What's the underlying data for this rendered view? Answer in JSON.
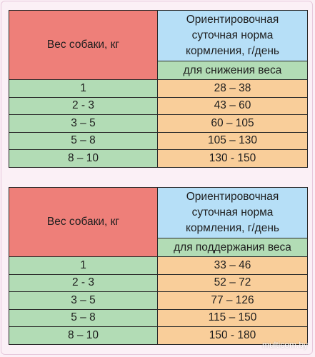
{
  "tables": [
    {
      "weight_header": "Вес собаки, кг",
      "norm_header": [
        "Ориентировочная",
        "суточная норма",
        "кормления, г/день"
      ],
      "goal": "для снижения веса",
      "rows": [
        {
          "weight": "1",
          "norm": "28 – 38"
        },
        {
          "weight": "2 - 3",
          "norm": "43 – 60"
        },
        {
          "weight": "3 – 5",
          "norm": "60 – 105"
        },
        {
          "weight": "5 – 8",
          "norm": "105 – 130"
        },
        {
          "weight": "8 – 10",
          "norm": "130 - 150"
        }
      ]
    },
    {
      "weight_header": "Вес собаки, кг",
      "norm_header": [
        "Ориентировочная",
        "суточная норма",
        "кормления, г/день"
      ],
      "goal": "для поддержания веса",
      "rows": [
        {
          "weight": "1",
          "norm": "33 – 46"
        },
        {
          "weight": "2 - 3",
          "norm": "52 – 72"
        },
        {
          "weight": "3 – 5",
          "norm": "77 – 126"
        },
        {
          "weight": "5 – 8",
          "norm": "115 – 150"
        },
        {
          "weight": "8 – 10",
          "norm": "150 - 180"
        }
      ]
    }
  ],
  "watermark": "multicom.by",
  "colors": {
    "weight_header": "#ee7f79",
    "norm_header": "#b6dff7",
    "weight_cells": "#b2dcb5",
    "norm_cells": "#f9ce9a"
  }
}
